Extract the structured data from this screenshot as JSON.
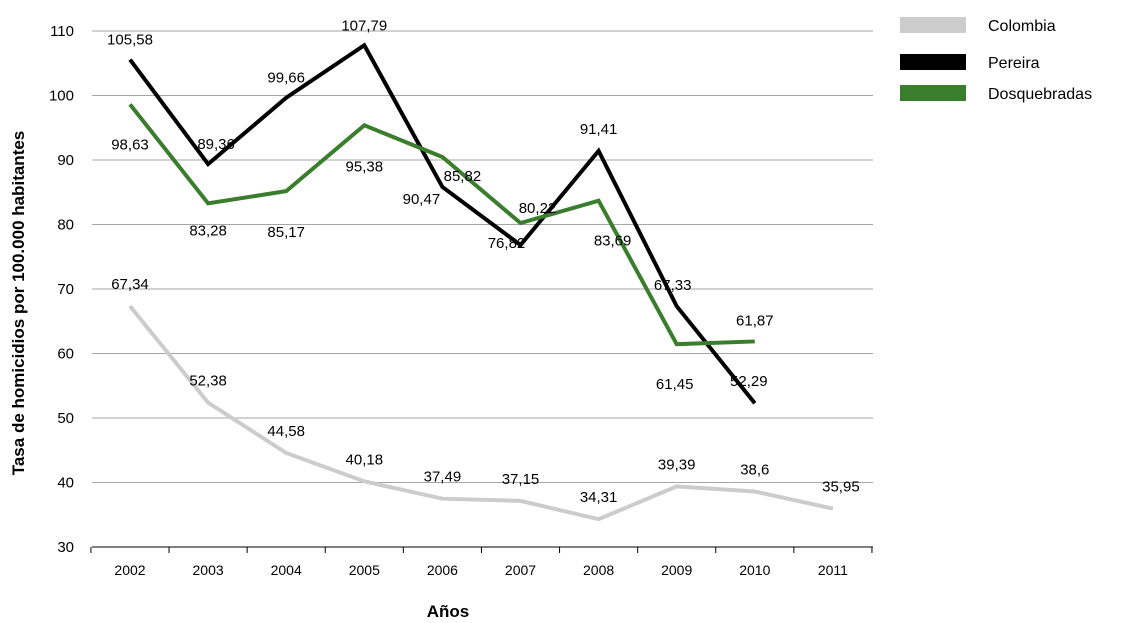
{
  "chart_data": {
    "type": "line",
    "xlabel": "Años",
    "ylabel": "Tasa de homicidios por 100.000 habitantes",
    "ylim": [
      30,
      110
    ],
    "yticks": [
      30,
      40,
      50,
      60,
      70,
      80,
      90,
      100,
      110
    ],
    "grid": true,
    "legend_position": "top-right",
    "categories": [
      "2002",
      "2003",
      "2004",
      "2005",
      "2006",
      "2007",
      "2008",
      "2009",
      "2010",
      "2011"
    ],
    "series": [
      {
        "name": "Colombia",
        "color": "#cccccc",
        "values": [
          67.34,
          52.38,
          44.58,
          40.18,
          37.49,
          37.15,
          34.31,
          39.39,
          38.6,
          35.95
        ],
        "labels": [
          "67,34",
          "52,38",
          "44,58",
          "40,18",
          "37,49",
          "37,15",
          "34,31",
          "39,39",
          "38,6",
          "35,95"
        ]
      },
      {
        "name": "Pereira",
        "color": "#000000",
        "values": [
          105.58,
          89.36,
          99.66,
          107.79,
          85.82,
          76.82,
          91.41,
          67.33,
          52.29,
          null
        ],
        "labels": [
          "105,58",
          "89,36",
          "99,66",
          "107,79",
          "85,82",
          "76,82",
          "91,41",
          "67,33",
          "52,29",
          null
        ]
      },
      {
        "name": "Dosquebradas",
        "color": "#3a7d2c",
        "values": [
          98.63,
          83.28,
          85.17,
          95.38,
          90.47,
          80.22,
          83.69,
          61.45,
          61.87,
          null
        ],
        "labels": [
          "98,63",
          "83,28",
          "85,17",
          "95,38",
          "90,47",
          "80,22",
          "83,69",
          "61,45",
          "61,87",
          null
        ]
      }
    ]
  }
}
